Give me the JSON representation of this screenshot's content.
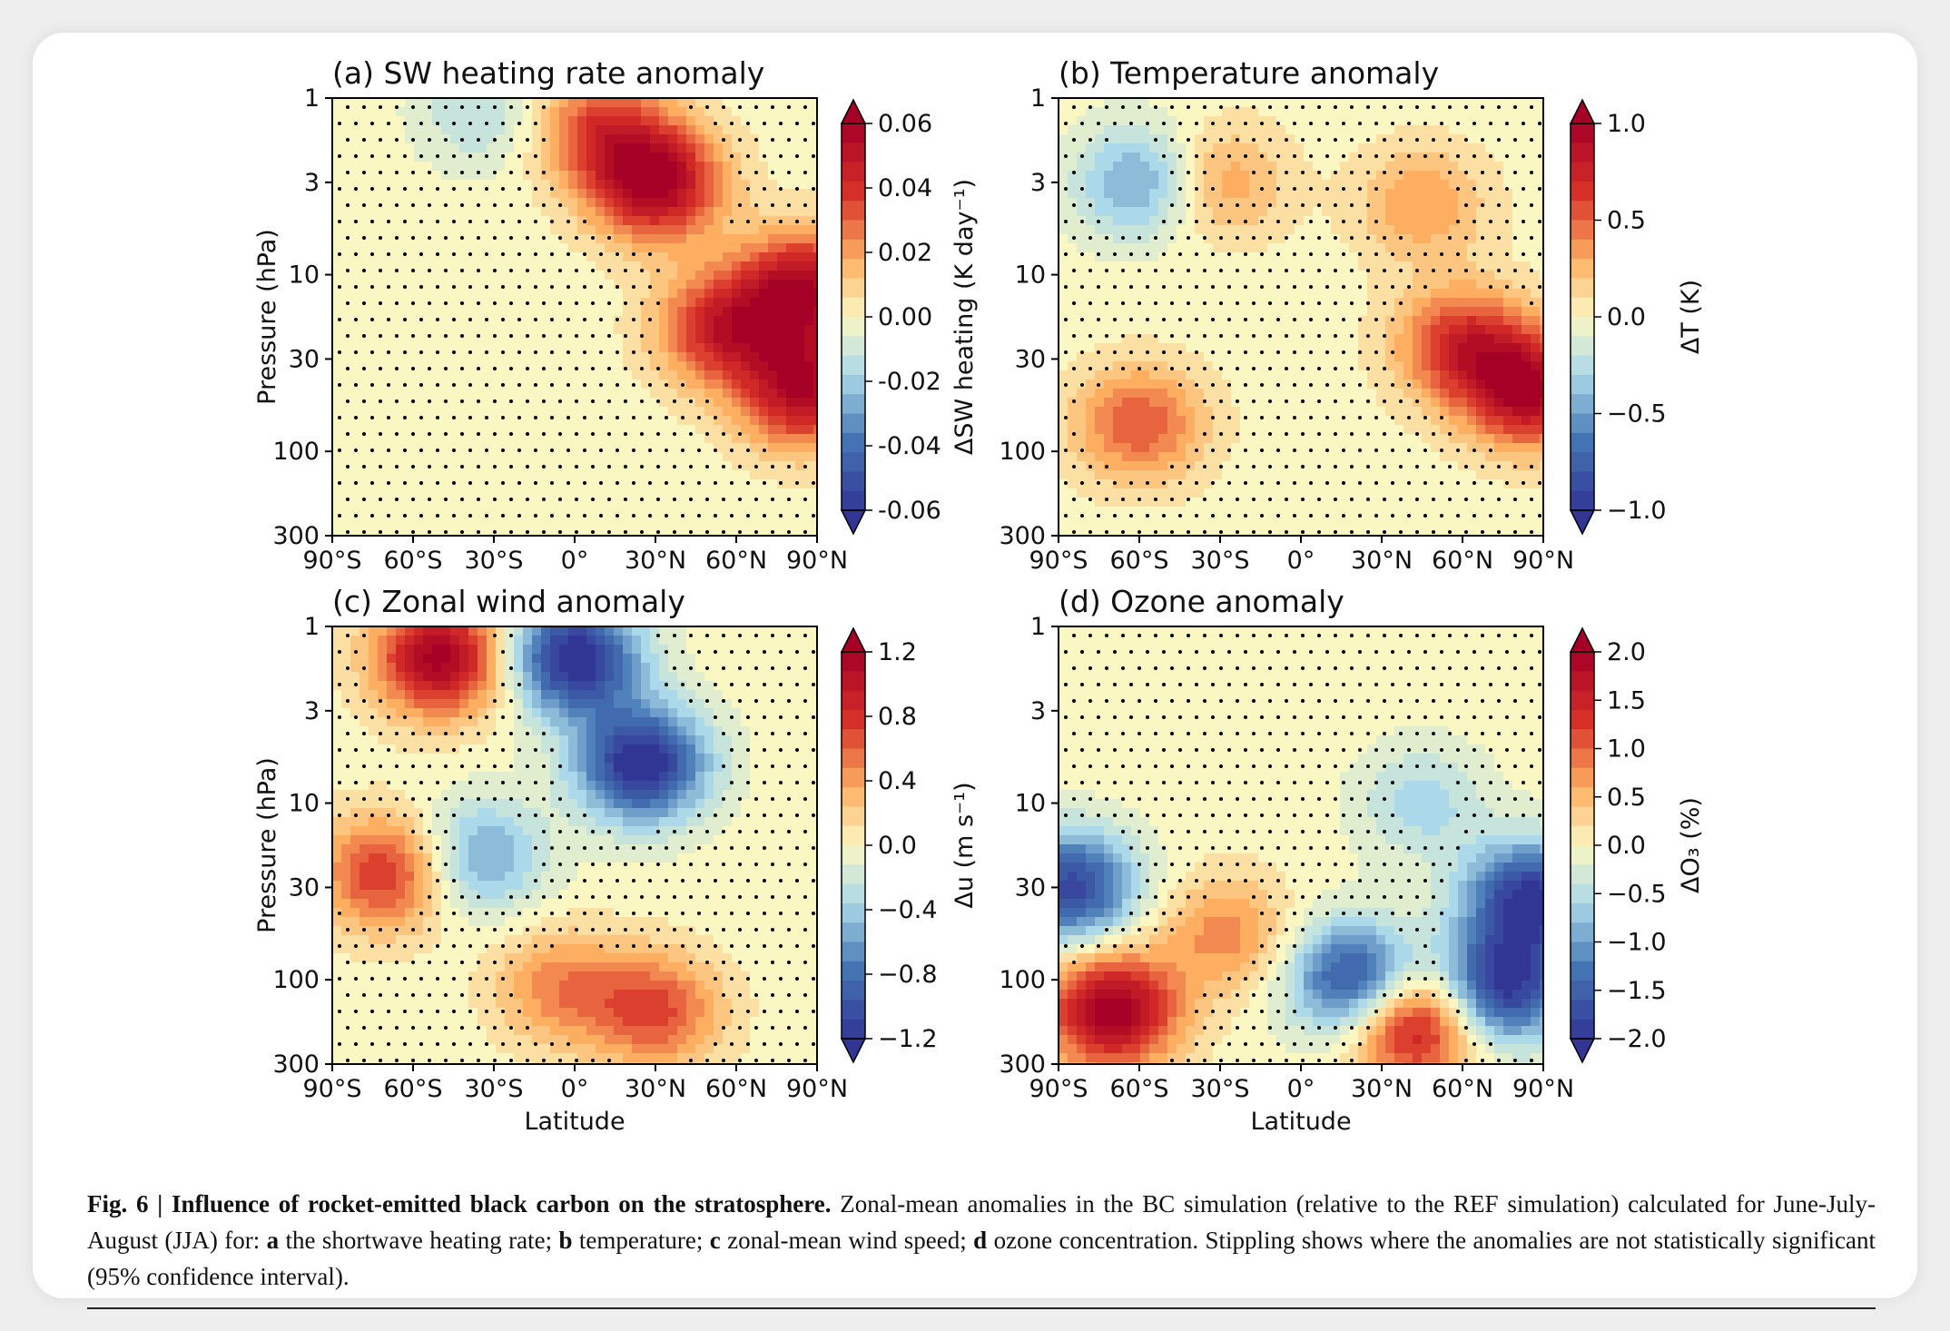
{
  "caption": {
    "fig_label": "Fig. 6 | Influence of rocket-emitted black carbon on the stratosphere.",
    "t1": " Zonal-mean anomalies in the BC simulation (relative to the REF simulation) calculated for June-July-August (JJA) for: ",
    "a": "a",
    "ta": " the shortwave heating rate; ",
    "b": "b",
    "tb": " temperature; ",
    "c": "c",
    "tc": " zonal-mean wind speed; ",
    "d": "d",
    "td": " ozone concentration. Stippling shows where the anomalies are not statistically significant (95% confidence interval)."
  },
  "colors": {
    "low": "#313695",
    "mid": "#fbf7c2",
    "high": "#a50026"
  },
  "chart_data": [
    {
      "type": "heatmap",
      "title": "(a) SW heating rate anomaly",
      "xlabel": "",
      "ylabel": "Pressure (hPa)",
      "xticks": [
        "90°S",
        "60°S",
        "30°S",
        "0°",
        "30°N",
        "60°N",
        "90°N"
      ],
      "yticks": [
        "1",
        "3",
        "10",
        "30",
        "100",
        "300"
      ],
      "ylim": [
        1,
        300
      ],
      "colorbar_label": "ΔSW heating (K day⁻¹)",
      "colorbar_ticks": [
        "0.06",
        "0.04",
        "0.02",
        "0.00",
        "-0.02",
        "-0.04",
        "-0.06"
      ],
      "vmin": -0.06,
      "vmax": 0.06,
      "features": [
        {
          "lat": 30,
          "p": 3,
          "value": 0.06
        },
        {
          "lat": 85,
          "p": 12,
          "value": 0.055
        },
        {
          "lat": 85,
          "p": 45,
          "value": 0.055
        },
        {
          "lat": 55,
          "p": 20,
          "value": 0.045
        },
        {
          "lat": 10,
          "p": 1.5,
          "value": 0.035
        },
        {
          "lat": -35,
          "p": 1.2,
          "value": -0.015
        }
      ]
    },
    {
      "type": "heatmap",
      "title": "(b) Temperature anomaly",
      "xlabel": "",
      "ylabel": "",
      "xticks": [
        "90°S",
        "60°S",
        "30°S",
        "0°",
        "30°N",
        "60°N",
        "90°N"
      ],
      "yticks": [
        "1",
        "3",
        "10",
        "30",
        "100",
        "300"
      ],
      "ylim": [
        1,
        300
      ],
      "colorbar_label": "ΔT (K)",
      "colorbar_ticks": [
        "1.0",
        "0.5",
        "0.0",
        "−0.5",
        "−1.0"
      ],
      "vmin": -1.0,
      "vmax": 1.0,
      "features": [
        {
          "lat": 85,
          "p": 45,
          "value": 0.95
        },
        {
          "lat": 60,
          "p": 25,
          "value": 0.7
        },
        {
          "lat": 45,
          "p": 4,
          "value": 0.35
        },
        {
          "lat": -60,
          "p": 70,
          "value": 0.55
        },
        {
          "lat": -30,
          "p": 3,
          "value": 0.35
        },
        {
          "lat": -60,
          "p": 3,
          "value": -0.5
        }
      ]
    },
    {
      "type": "heatmap",
      "title": "(c) Zonal wind anomaly",
      "xlabel": "Latitude",
      "ylabel": "Pressure (hPa)",
      "xticks": [
        "90°S",
        "60°S",
        "30°S",
        "0°",
        "30°N",
        "60°N",
        "90°N"
      ],
      "yticks": [
        "1",
        "3",
        "10",
        "30",
        "100",
        "300"
      ],
      "ylim": [
        1,
        300
      ],
      "colorbar_label": "Δu (m s⁻¹)",
      "colorbar_ticks": [
        "1.2",
        "0.8",
        "0.4",
        "0.0",
        "−0.4",
        "−0.8",
        "−1.2"
      ],
      "vmin": -1.2,
      "vmax": 1.2,
      "features": [
        {
          "lat": -50,
          "p": 1.5,
          "value": 1.2
        },
        {
          "lat": 0,
          "p": 1.5,
          "value": -1.3
        },
        {
          "lat": 25,
          "p": 6,
          "value": -1.3
        },
        {
          "lat": -70,
          "p": 25,
          "value": 0.8
        },
        {
          "lat": -35,
          "p": 20,
          "value": -0.6
        },
        {
          "lat": 30,
          "p": 150,
          "value": 0.7
        },
        {
          "lat": -5,
          "p": 110,
          "value": 0.5
        }
      ]
    },
    {
      "type": "heatmap",
      "title": "(d) Ozone anomaly",
      "xlabel": "Latitude",
      "ylabel": "",
      "xticks": [
        "90°S",
        "60°S",
        "30°S",
        "0°",
        "30°N",
        "60°N",
        "90°N"
      ],
      "yticks": [
        "1",
        "3",
        "10",
        "30",
        "100",
        "300"
      ],
      "ylim": [
        1,
        300
      ],
      "colorbar_label": "ΔO₃ (%)",
      "colorbar_ticks": [
        "2.0",
        "1.5",
        "1.0",
        "0.5",
        "0.0",
        "−0.5",
        "−1.0",
        "−1.5",
        "−2.0"
      ],
      "vmin": -2.0,
      "vmax": 2.0,
      "features": [
        {
          "lat": -70,
          "p": 150,
          "value": 2.1
        },
        {
          "lat": -85,
          "p": 30,
          "value": -1.8
        },
        {
          "lat": 85,
          "p": 35,
          "value": -2.0
        },
        {
          "lat": 75,
          "p": 110,
          "value": -2.0
        },
        {
          "lat": 20,
          "p": 100,
          "value": -1.8
        },
        {
          "lat": 42,
          "p": 180,
          "value": 1.8
        },
        {
          "lat": -28,
          "p": 55,
          "value": 0.8
        },
        {
          "lat": 45,
          "p": 10,
          "value": -0.6
        }
      ]
    }
  ]
}
